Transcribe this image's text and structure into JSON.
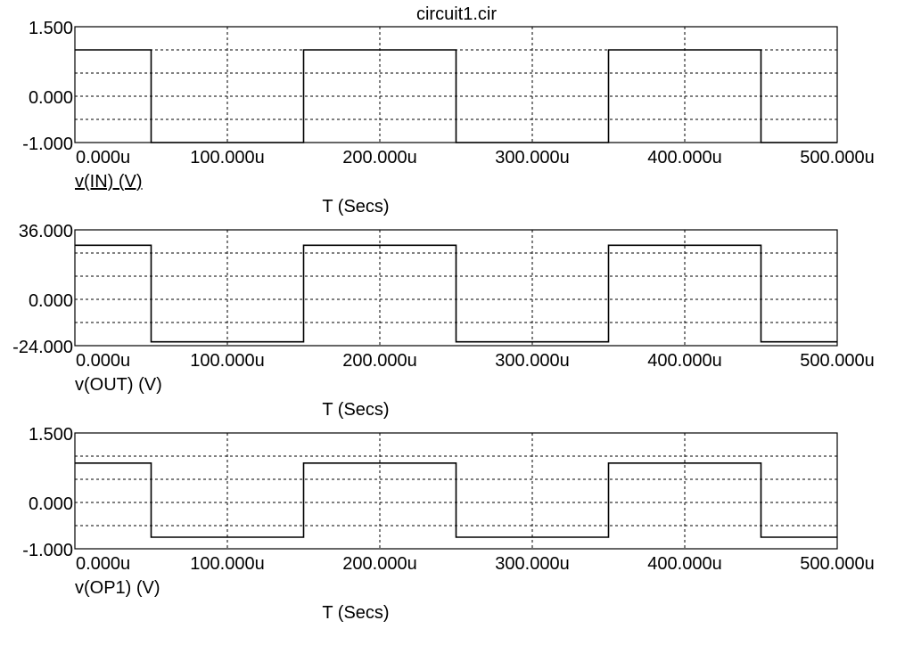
{
  "title": "circuit1.cir",
  "colors": {
    "trace": "#000000",
    "grid": "#000000",
    "background": "#ffffff"
  },
  "chart_data": [
    {
      "type": "line",
      "xlabel": "T (Secs)",
      "ylabel": "v(IN) (V)",
      "ylabel_underlined": true,
      "xlim": [
        0,
        500
      ],
      "x_units": "u",
      "ylim": [
        -1,
        1.5
      ],
      "x_ticks": [
        "0.000u",
        "100.000u",
        "200.000u",
        "300.000u",
        "400.000u",
        "500.000u"
      ],
      "y_ticks": [
        "1.500",
        "0.000",
        "-1.000"
      ],
      "grid": true,
      "series": [
        {
          "x": [
            0,
            50,
            50,
            150,
            150,
            250,
            250,
            350,
            350,
            450,
            450,
            500
          ],
          "y": [
            1,
            1,
            -1,
            -1,
            1,
            1,
            -1,
            -1,
            1,
            1,
            -1,
            -1
          ]
        }
      ]
    },
    {
      "type": "line",
      "xlabel": "T (Secs)",
      "ylabel": "v(OUT) (V)",
      "ylabel_underlined": false,
      "xlim": [
        0,
        500
      ],
      "x_units": "u",
      "ylim": [
        -24,
        36
      ],
      "x_ticks": [
        "0.000u",
        "100.000u",
        "200.000u",
        "300.000u",
        "400.000u",
        "500.000u"
      ],
      "y_ticks": [
        "36.000",
        "0.000",
        "-24.000"
      ],
      "grid": true,
      "series": [
        {
          "x": [
            0,
            50,
            50,
            150,
            150,
            250,
            250,
            350,
            350,
            450,
            450,
            500
          ],
          "y": [
            28,
            28,
            -22,
            -22,
            28,
            28,
            -22,
            -22,
            28,
            28,
            -22,
            -22
          ]
        }
      ]
    },
    {
      "type": "line",
      "xlabel": "T (Secs)",
      "ylabel": "v(OP1) (V)",
      "ylabel_underlined": false,
      "xlim": [
        0,
        500
      ],
      "x_units": "u",
      "ylim": [
        -1,
        1.5
      ],
      "x_ticks": [
        "0.000u",
        "100.000u",
        "200.000u",
        "300.000u",
        "400.000u",
        "500.000u"
      ],
      "y_ticks": [
        "1.500",
        "0.000",
        "-1.000"
      ],
      "grid": true,
      "series": [
        {
          "x": [
            0,
            50,
            50,
            150,
            150,
            250,
            250,
            350,
            350,
            450,
            450,
            500
          ],
          "y": [
            0.85,
            0.85,
            -0.75,
            -0.75,
            0.85,
            0.85,
            -0.75,
            -0.75,
            0.85,
            0.85,
            -0.75,
            -0.75
          ]
        }
      ]
    }
  ]
}
